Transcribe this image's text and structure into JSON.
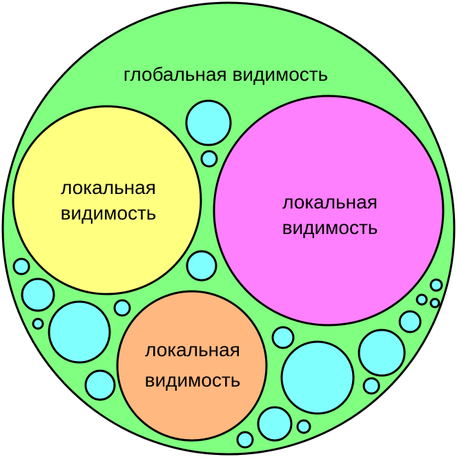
{
  "colors": {
    "global_scope": "#80ff80",
    "local_scope_yellow": "#ffff80",
    "local_scope_magenta": "#ff80ff",
    "local_scope_orange": "#ffb880",
    "small_bubble": "#80ffff",
    "outline": "#000000"
  },
  "global_scope": {
    "label": "глобальная видимость"
  },
  "local_scopes": [
    {
      "line1": "локальная",
      "line2": "видимость"
    },
    {
      "line1": "локальная",
      "line2": "видимость"
    },
    {
      "line1": "локальная",
      "line2": "видимость"
    }
  ]
}
